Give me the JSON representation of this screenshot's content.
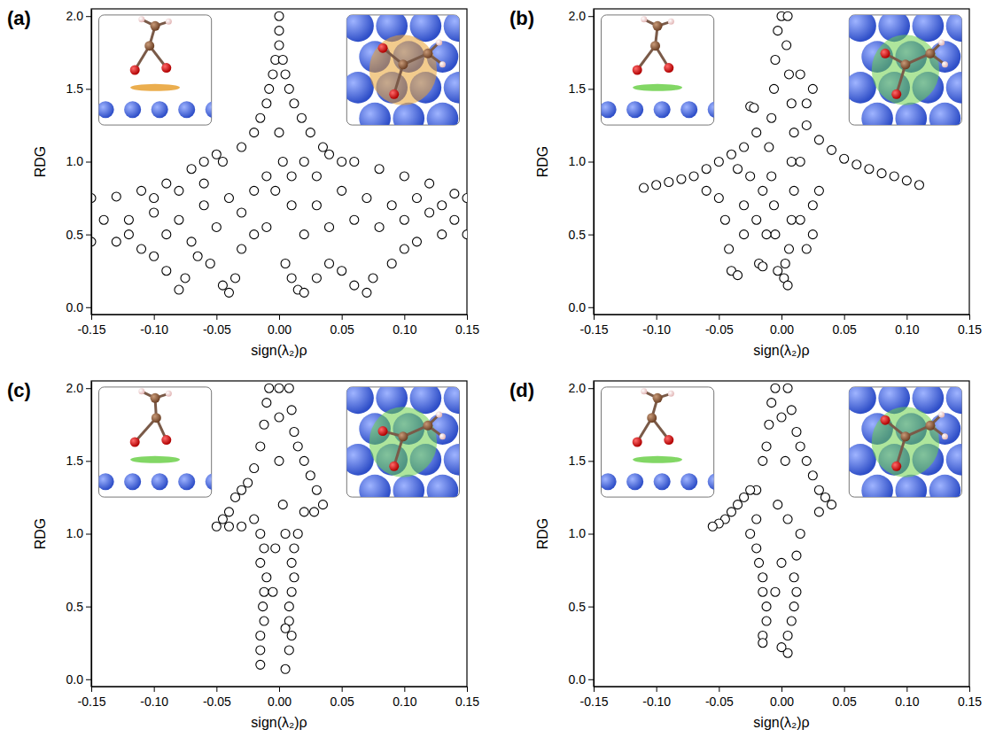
{
  "chart_data": [
    {
      "type": "scatter",
      "title": "(a)",
      "x_label": "sign(λ₂)ρ",
      "y_label": "RDG",
      "marker": "circle",
      "color": "#000000",
      "xlim": [
        -0.15,
        0.15
      ],
      "ylim": [
        -0.05,
        2.05
      ],
      "xticks": [
        -0.15,
        {
          "value": -0.1,
          "label": "-0.10"
        },
        -0.05,
        {
          "value": 0,
          "label": "0.00"
        },
        0.05,
        {
          "value": 0.1,
          "label": "0.10"
        },
        0.15
      ],
      "yticks": [
        {
          "value": 0,
          "label": "0.0"
        },
        0.5,
        {
          "value": 1,
          "label": "1.0"
        },
        1.5,
        {
          "value": 2,
          "label": "2.0"
        }
      ],
      "x": [
        0,
        0,
        0,
        -0.003,
        0.003,
        -0.005,
        0.005,
        -0.008,
        0.008,
        -0.01,
        0.012,
        -0.015,
        0.018,
        -0.02,
        0.025,
        -0.03,
        0.035,
        -0.045,
        0.05,
        -0.15,
        -0.13,
        -0.11,
        -0.09,
        -0.07,
        -0.06,
        -0.05,
        -0.15,
        -0.13,
        -0.11,
        -0.1,
        -0.09,
        -0.08,
        -0.075,
        -0.065,
        -0.055,
        -0.045,
        -0.04,
        -0.035,
        -0.03,
        -0.02,
        -0.01,
        -0.14,
        -0.12,
        -0.1,
        -0.08,
        -0.06,
        -0.04,
        -0.12,
        -0.09,
        -0.07,
        -0.05,
        -0.03,
        -0.02,
        -0.01,
        -0.06,
        -0.1,
        -0.08,
        0.06,
        0.08,
        0.1,
        0.12,
        0.14,
        0.15,
        0.005,
        0.01,
        0.015,
        0.02,
        0.03,
        0.04,
        0.05,
        0.06,
        0.07,
        0.075,
        0.09,
        0.1,
        0.11,
        0.13,
        0.15,
        0.02,
        0.03,
        0.04,
        0.05,
        0.06,
        0.07,
        0.08,
        0.09,
        0.1,
        0.11,
        0.12,
        0.13,
        0.14,
        0.01,
        0.02,
        0.03,
        0.04,
        0.01,
        0.003,
        -0.003,
        0
      ],
      "values": [
        2,
        1.9,
        1.8,
        1.7,
        1.7,
        1.6,
        1.6,
        1.5,
        1.5,
        1.4,
        1.4,
        1.3,
        1.3,
        1.2,
        1.2,
        1.1,
        1.1,
        1.0,
        1.0,
        0.75,
        0.76,
        0.8,
        0.85,
        0.95,
        1.0,
        1.05,
        0.45,
        0.45,
        0.4,
        0.35,
        0.25,
        0.12,
        0.2,
        0.35,
        0.3,
        0.15,
        0.1,
        0.2,
        0.4,
        0.5,
        0.55,
        0.6,
        0.6,
        0.65,
        0.6,
        0.7,
        0.75,
        0.5,
        0.5,
        0.45,
        0.55,
        0.65,
        0.8,
        0.9,
        0.85,
        0.75,
        0.8,
        1.0,
        0.95,
        0.9,
        0.85,
        0.78,
        0.75,
        0.3,
        0.2,
        0.12,
        0.1,
        0.2,
        0.3,
        0.25,
        0.15,
        0.1,
        0.2,
        0.3,
        0.4,
        0.45,
        0.5,
        0.5,
        0.5,
        0.7,
        0.55,
        0.8,
        0.6,
        0.75,
        0.55,
        0.7,
        0.6,
        0.75,
        0.65,
        0.7,
        0.6,
        0.9,
        1.0,
        0.9,
        1.05,
        0.7,
        1.0,
        0.8,
        1.2
      ]
    },
    {
      "type": "scatter",
      "title": "(b)",
      "x_label": "sign(λ₂)ρ",
      "y_label": "RDG",
      "marker": "circle",
      "color": "#000000",
      "xlim": [
        -0.15,
        0.15
      ],
      "ylim": [
        -0.05,
        2.05
      ],
      "xticks": [
        -0.15,
        {
          "value": -0.1,
          "label": "-0.10"
        },
        -0.05,
        {
          "value": 0,
          "label": "0.00"
        },
        0.05,
        {
          "value": 0.1,
          "label": "0.10"
        },
        0.15
      ],
      "yticks": [
        {
          "value": 0,
          "label": "0.0"
        },
        0.5,
        {
          "value": 1,
          "label": "1.0"
        },
        1.5,
        {
          "value": 2,
          "label": "2.0"
        }
      ],
      "x": [
        0,
        0.005,
        -0.003,
        0.004,
        -0.005,
        0.006,
        -0.006,
        0.008,
        -0.008,
        0.01,
        -0.01,
        0.008,
        -0.008,
        0.01,
        -0.006,
        0.008,
        -0.005,
        0.006,
        0.003,
        0.002,
        0.005,
        -0.003,
        -0.11,
        -0.1,
        -0.09,
        -0.08,
        -0.07,
        -0.06,
        -0.05,
        -0.04,
        -0.03,
        -0.02,
        -0.06,
        -0.05,
        -0.045,
        -0.042,
        -0.04,
        -0.035,
        -0.03,
        -0.03,
        -0.025,
        -0.02,
        -0.018,
        -0.015,
        -0.012,
        -0.025,
        -0.022,
        -0.035,
        -0.015,
        0.02,
        0.03,
        0.04,
        0.05,
        0.06,
        0.07,
        0.08,
        0.09,
        0.1,
        0.11,
        0.015,
        0.02,
        0.025,
        0.03,
        0.025,
        0.015,
        0.02,
        0.025,
        0.015
      ],
      "values": [
        2,
        2,
        1.9,
        1.8,
        1.7,
        1.6,
        1.5,
        1.4,
        1.3,
        1.2,
        1.1,
        1.0,
        0.9,
        0.8,
        0.7,
        0.6,
        0.5,
        0.4,
        0.3,
        0.2,
        0.15,
        0.25,
        0.82,
        0.84,
        0.86,
        0.88,
        0.9,
        0.95,
        1.0,
        1.05,
        1.1,
        1.2,
        0.8,
        0.75,
        0.6,
        0.4,
        0.25,
        0.22,
        0.5,
        0.7,
        0.9,
        0.6,
        0.3,
        0.28,
        0.5,
        1.38,
        1.37,
        0.95,
        0.8,
        1.25,
        1.15,
        1.08,
        1.02,
        0.98,
        0.95,
        0.92,
        0.9,
        0.87,
        0.84,
        0.6,
        0.4,
        0.5,
        0.8,
        0.7,
        1.0,
        1.4,
        1.5,
        1.6
      ]
    },
    {
      "type": "scatter",
      "title": "(c)",
      "x_label": "sign(λ₂)ρ",
      "y_label": "RDG",
      "marker": "circle",
      "color": "#000000",
      "xlim": [
        -0.15,
        0.15
      ],
      "ylim": [
        -0.05,
        2.05
      ],
      "xticks": [
        -0.15,
        {
          "value": -0.1,
          "label": "-0.10"
        },
        -0.05,
        {
          "value": 0,
          "label": "0.00"
        },
        0.05,
        {
          "value": 0.1,
          "label": "0.10"
        },
        0.15
      ],
      "yticks": [
        {
          "value": 0,
          "label": "0.0"
        },
        0.5,
        {
          "value": 1,
          "label": "1.0"
        },
        1.5,
        {
          "value": 2,
          "label": "2.0"
        }
      ],
      "x": [
        -0.008,
        0,
        0.008,
        -0.01,
        0.01,
        -0.012,
        0.012,
        -0.015,
        0.015,
        -0.02,
        0.02,
        -0.025,
        0.025,
        -0.03,
        0.03,
        -0.035,
        0.035,
        -0.04,
        -0.045,
        -0.05,
        -0.04,
        -0.03,
        0.028,
        0.02,
        -0.02,
        -0.015,
        0.015,
        -0.012,
        0.012,
        -0.015,
        0.01,
        -0.01,
        0.012,
        -0.012,
        0.01,
        -0.013,
        0.008,
        -0.012,
        0.008,
        -0.015,
        0.01,
        -0.015,
        0.008,
        -0.015,
        0.005,
        -0.003,
        0.003,
        0,
        -0.005,
        0.005,
        0,
        0.005
      ],
      "values": [
        2,
        2,
        2,
        1.9,
        1.85,
        1.75,
        1.7,
        1.6,
        1.6,
        1.45,
        1.5,
        1.35,
        1.4,
        1.3,
        1.3,
        1.25,
        1.2,
        1.15,
        1.1,
        1.05,
        1.05,
        1.05,
        1.15,
        1.15,
        1.1,
        1.0,
        1.0,
        0.9,
        0.9,
        0.8,
        0.8,
        0.7,
        0.7,
        0.6,
        0.6,
        0.5,
        0.5,
        0.4,
        0.4,
        0.3,
        0.3,
        0.2,
        0.2,
        0.1,
        0.07,
        0.9,
        1.2,
        1.5,
        0.6,
        0.35,
        1.8,
        1.0
      ]
    },
    {
      "type": "scatter",
      "title": "(d)",
      "x_label": "sign(λ₂)ρ",
      "y_label": "RDG",
      "marker": "circle",
      "color": "#000000",
      "xlim": [
        -0.15,
        0.15
      ],
      "ylim": [
        -0.05,
        2.05
      ],
      "xticks": [
        -0.15,
        {
          "value": -0.1,
          "label": "-0.10"
        },
        -0.05,
        {
          "value": 0,
          "label": "0.00"
        },
        0.05,
        {
          "value": 0.1,
          "label": "0.10"
        },
        0.15
      ],
      "yticks": [
        {
          "value": 0,
          "label": "0.0"
        },
        0.5,
        {
          "value": 1,
          "label": "1.0"
        },
        1.5,
        {
          "value": 2,
          "label": "2.0"
        }
      ],
      "x": [
        -0.005,
        0.005,
        -0.008,
        0.008,
        -0.01,
        0.012,
        -0.012,
        0.015,
        -0.015,
        0.02,
        -0.02,
        0.025,
        -0.025,
        0.03,
        -0.03,
        0.035,
        -0.035,
        0.04,
        -0.04,
        -0.045,
        -0.05,
        -0.055,
        0.03,
        -0.02,
        -0.025,
        -0.02,
        0.015,
        -0.018,
        0.012,
        -0.015,
        0.01,
        -0.015,
        0.012,
        -0.012,
        0.01,
        -0.012,
        0.008,
        -0.015,
        0.005,
        -0.015,
        0.005,
        0,
        -0.003,
        0.003,
        0,
        -0.005,
        0.005,
        0
      ],
      "values": [
        2,
        2,
        1.9,
        1.85,
        1.75,
        1.7,
        1.6,
        1.6,
        1.5,
        1.5,
        1.3,
        1.4,
        1.3,
        1.3,
        1.25,
        1.25,
        1.2,
        1.2,
        1.15,
        1.1,
        1.07,
        1.05,
        1.15,
        1.1,
        1.0,
        0.9,
        1.0,
        0.8,
        0.85,
        0.7,
        0.7,
        0.6,
        0.6,
        0.5,
        0.5,
        0.4,
        0.4,
        0.3,
        0.3,
        0.25,
        0.18,
        0.22,
        1.2,
        1.5,
        0.8,
        0.6,
        1.1,
        1.8
      ]
    }
  ]
}
